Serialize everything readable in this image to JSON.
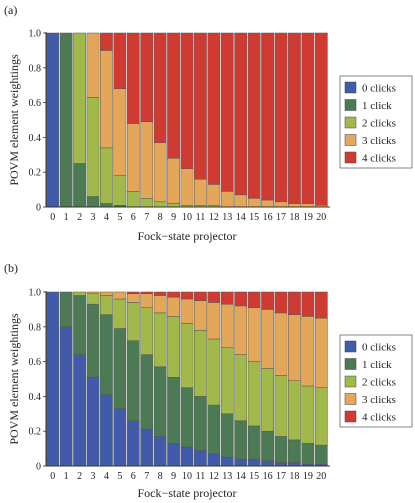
{
  "colors": {
    "c0": "#3f5ba9",
    "c1": "#4c7a55",
    "c2": "#a0b94a",
    "c3": "#e4a75a",
    "c4": "#cf3b33"
  },
  "chart_data": [
    {
      "type": "bar",
      "stacked": true,
      "panel_label": "(a)",
      "xlabel": "Fock−state projector",
      "ylabel": "POVM element weightings",
      "ylim": [
        0,
        1
      ],
      "yticks": [
        0,
        0.2,
        0.4,
        0.6,
        0.8,
        1.0
      ],
      "ytick_labels": [
        "0",
        "0.2",
        "0.4",
        "0.6",
        "0.8",
        "1.0"
      ],
      "grid": false,
      "legend": "right",
      "categories": [
        "0",
        "1",
        "2",
        "3",
        "4",
        "5",
        "6",
        "7",
        "8",
        "9",
        "10",
        "11",
        "12",
        "13",
        "14",
        "15",
        "16",
        "17",
        "18",
        "19",
        "20"
      ],
      "series": [
        {
          "name": "0 clicks",
          "values": [
            1,
            0,
            0,
            0,
            0,
            0,
            0,
            0,
            0,
            0,
            0,
            0,
            0,
            0,
            0,
            0,
            0,
            0,
            0,
            0,
            0
          ]
        },
        {
          "name": "1 click",
          "values": [
            0,
            1,
            0.25,
            0.06,
            0.02,
            0.01,
            0,
            0,
            0,
            0,
            0,
            0,
            0,
            0,
            0,
            0,
            0,
            0,
            0,
            0,
            0
          ]
        },
        {
          "name": "2 clicks",
          "values": [
            0,
            0,
            0.75,
            0.57,
            0.32,
            0.17,
            0.09,
            0.05,
            0.03,
            0.02,
            0.01,
            0.01,
            0.01,
            0,
            0,
            0,
            0,
            0,
            0,
            0,
            0
          ]
        },
        {
          "name": "3 clicks",
          "values": [
            0,
            0,
            0,
            0.37,
            0.56,
            0.5,
            0.39,
            0.44,
            0.34,
            0.26,
            0.21,
            0.15,
            0.12,
            0.09,
            0.07,
            0.05,
            0.04,
            0.03,
            0.02,
            0.02,
            0.01
          ]
        },
        {
          "name": "4 clicks",
          "values": [
            0,
            0,
            0,
            0,
            0.1,
            0.32,
            0.52,
            0.51,
            0.63,
            0.72,
            0.78,
            0.84,
            0.87,
            0.91,
            0.93,
            0.95,
            0.96,
            0.97,
            0.98,
            0.98,
            0.99
          ]
        }
      ]
    },
    {
      "type": "bar",
      "stacked": true,
      "panel_label": "(b)",
      "xlabel": "Fock−state projector",
      "ylabel": "POVM element weightings",
      "ylim": [
        0,
        1
      ],
      "yticks": [
        0,
        0.2,
        0.4,
        0.6,
        0.8,
        1.0
      ],
      "ytick_labels": [
        "0",
        "0.2",
        "0.4",
        "0.6",
        "0.8",
        "1.0"
      ],
      "grid": false,
      "legend": "bottom-right",
      "categories": [
        "0",
        "1",
        "2",
        "3",
        "4",
        "5",
        "6",
        "7",
        "8",
        "9",
        "10",
        "11",
        "12",
        "13",
        "14",
        "15",
        "16",
        "17",
        "18",
        "19",
        "20"
      ],
      "series": [
        {
          "name": "0 clicks",
          "values": [
            1,
            0.8,
            0.64,
            0.51,
            0.41,
            0.33,
            0.26,
            0.21,
            0.17,
            0.13,
            0.11,
            0.09,
            0.07,
            0.05,
            0.04,
            0.04,
            0.03,
            0.02,
            0.02,
            0.01,
            0.01
          ]
        },
        {
          "name": "1 click",
          "values": [
            0,
            0.2,
            0.34,
            0.42,
            0.46,
            0.46,
            0.46,
            0.43,
            0.4,
            0.38,
            0.34,
            0.31,
            0.28,
            0.25,
            0.22,
            0.19,
            0.17,
            0.15,
            0.13,
            0.12,
            0.11
          ]
        },
        {
          "name": "2 clicks",
          "values": [
            0,
            0,
            0.02,
            0.06,
            0.11,
            0.17,
            0.22,
            0.27,
            0.31,
            0.35,
            0.37,
            0.38,
            0.38,
            0.38,
            0.38,
            0.37,
            0.36,
            0.35,
            0.34,
            0.33,
            0.33
          ]
        },
        {
          "name": "3 clicks",
          "values": [
            0,
            0,
            0,
            0.01,
            0.02,
            0.04,
            0.05,
            0.08,
            0.1,
            0.11,
            0.14,
            0.17,
            0.21,
            0.25,
            0.28,
            0.31,
            0.34,
            0.36,
            0.38,
            0.4,
            0.4
          ]
        },
        {
          "name": "4 clicks",
          "values": [
            0,
            0,
            0,
            0,
            0,
            0,
            0.01,
            0.01,
            0.02,
            0.03,
            0.04,
            0.05,
            0.06,
            0.07,
            0.08,
            0.09,
            0.1,
            0.12,
            0.13,
            0.14,
            0.15
          ]
        }
      ]
    }
  ]
}
